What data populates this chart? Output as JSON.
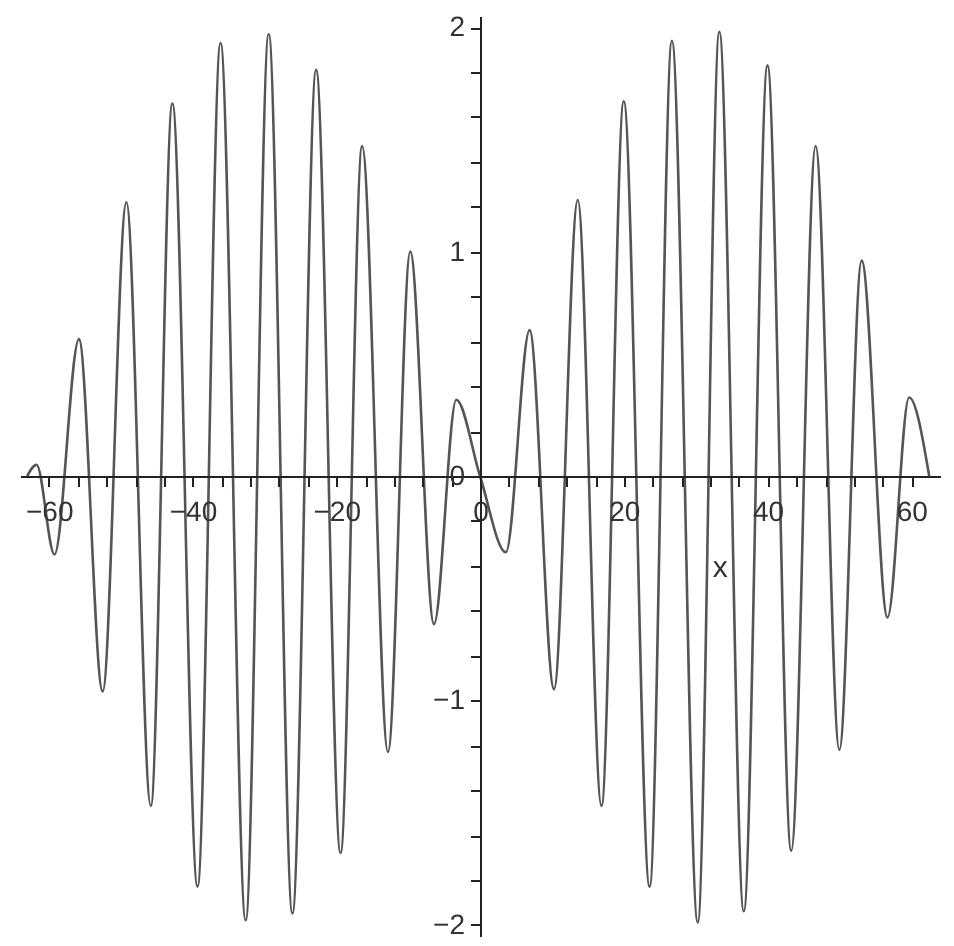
{
  "chart_data": {
    "type": "line",
    "xlabel": "x",
    "x": [
      -63,
      -61.7,
      -59.2,
      -55.8,
      -52.5,
      -49.2,
      -45.8,
      -42.8,
      -39.3,
      -36.1,
      -32.6,
      -29.4,
      -26.1,
      -22.8,
      -19.4,
      -16.4,
      -12.8,
      -9.7,
      -6.4,
      -3.3,
      0,
      3.6,
      6.9,
      10.3,
      13.6,
      16.9,
      20.0,
      23.6,
      26.7,
      30.3,
      33.3,
      36.7,
      40.0,
      43.3,
      46.7,
      50.0,
      53.1,
      56.7,
      59.7,
      62.5
    ],
    "series": [
      {
        "color": "#555555",
        "values": [
          0,
          0.05,
          -0.35,
          0.61,
          -0.96,
          1.22,
          -1.47,
          1.66,
          -1.83,
          1.93,
          -1.98,
          1.97,
          -1.95,
          1.81,
          -1.68,
          1.47,
          -1.23,
          1.0,
          -0.66,
          0.34,
          0,
          -0.34,
          0.65,
          -0.95,
          1.23,
          -1.47,
          1.67,
          -1.83,
          1.94,
          -1.99,
          1.98,
          -1.94,
          1.83,
          -1.67,
          1.47,
          -1.22,
          0.96,
          -0.63,
          0.35,
          0
        ]
      }
    ],
    "xlim": [
      -64,
      64
    ],
    "ylim": [
      -2.05,
      2.05
    ],
    "xticks": [
      -60,
      {
        "value": -56,
        "label": null
      },
      {
        "value": -52,
        "label": null
      },
      {
        "value": -48,
        "label": null
      },
      {
        "value": -44,
        "label": null
      },
      -40,
      {
        "value": -36,
        "label": null
      },
      {
        "value": -32,
        "label": null
      },
      {
        "value": -28,
        "label": null
      },
      {
        "value": -24,
        "label": null
      },
      -20,
      {
        "value": -16,
        "label": null
      },
      {
        "value": -12,
        "label": null
      },
      {
        "value": -8,
        "label": null
      },
      {
        "value": -4,
        "label": null
      },
      0,
      {
        "value": 4,
        "label": null
      },
      {
        "value": 8,
        "label": null
      },
      {
        "value": 12,
        "label": null
      },
      {
        "value": 16,
        "label": null
      },
      20,
      {
        "value": 24,
        "label": null
      },
      {
        "value": 28,
        "label": null
      },
      {
        "value": 32,
        "label": null
      },
      {
        "value": 36,
        "label": null
      },
      40,
      {
        "value": 44,
        "label": null
      },
      {
        "value": 48,
        "label": null
      },
      {
        "value": 52,
        "label": null
      },
      {
        "value": 56,
        "label": null
      },
      60
    ],
    "yticks": [
      -2,
      {
        "value": -1.8,
        "label": null
      },
      {
        "value": -1.6,
        "label": null
      },
      {
        "value": -1.4,
        "label": null
      },
      {
        "value": -1.2,
        "label": null
      },
      -1,
      {
        "value": -0.8,
        "label": null
      },
      {
        "value": -0.6,
        "label": null
      },
      {
        "value": -0.4,
        "label": null
      },
      {
        "value": -0.2,
        "label": null
      },
      0,
      {
        "value": 0.2,
        "label": null
      },
      {
        "value": 0.4,
        "label": null
      },
      {
        "value": 0.6,
        "label": null
      },
      {
        "value": 0.8,
        "label": null
      },
      1,
      {
        "value": 1.2,
        "label": null
      },
      {
        "value": 1.4,
        "label": null
      },
      {
        "value": 1.6,
        "label": null
      },
      {
        "value": 1.8,
        "label": null
      },
      2
    ],
    "grid": false,
    "marker": "none",
    "line_style": "solid"
  }
}
